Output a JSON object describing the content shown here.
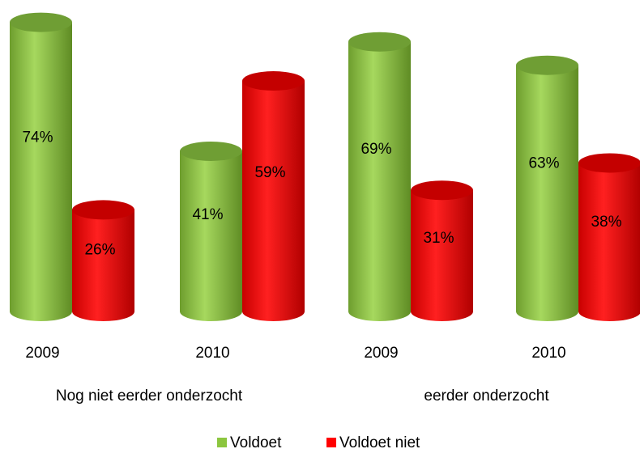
{
  "chart_data": {
    "type": "bar",
    "style": "cylinder",
    "categories": [
      "2009",
      "2010",
      "2009",
      "2010"
    ],
    "groups": [
      {
        "label": "Nog niet eerder onderzocht",
        "span": [
          0,
          1
        ]
      },
      {
        "label": "eerder onderzocht",
        "span": [
          2,
          3
        ]
      }
    ],
    "series": [
      {
        "name": "Voldoet",
        "color": "#8cc63f",
        "values": [
          74,
          41,
          69,
          63
        ],
        "value_labels": [
          "74%",
          "41%",
          "69%",
          "63%"
        ]
      },
      {
        "name": "Voldoet niet",
        "color": "#ff0000",
        "values": [
          26,
          59,
          31,
          38
        ],
        "value_labels": [
          "26%",
          "59%",
          "31%",
          "38%"
        ]
      }
    ],
    "legend": "bottom"
  }
}
